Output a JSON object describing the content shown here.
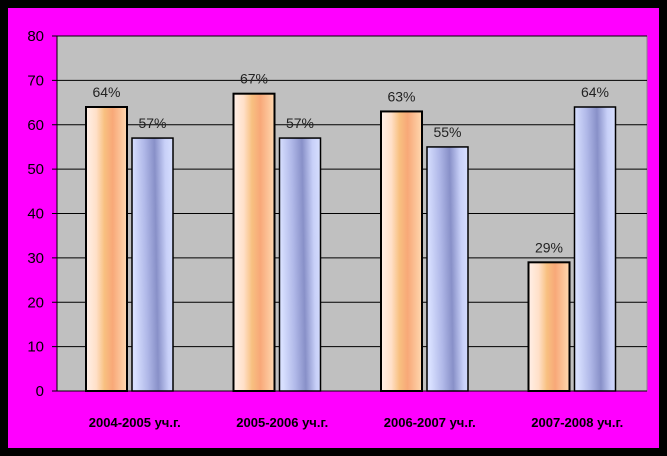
{
  "chart_data": {
    "type": "bar",
    "categories": [
      "2004-2005 уч.г.",
      "2005-2006 уч.г.",
      "2006-2007 уч.г.",
      "2007-2008 уч.г."
    ],
    "series": [
      {
        "values": [
          64,
          67,
          63,
          29
        ],
        "labels": [
          "64%",
          "67%",
          "63%",
          "29%"
        ],
        "color": "#f8b080"
      },
      {
        "values": [
          57,
          57,
          55,
          64
        ],
        "labels": [
          "57%",
          "57%",
          "55%",
          "64%"
        ],
        "color": "#9aa0d8"
      }
    ],
    "ylim": [
      0,
      80
    ],
    "yticks": [
      0,
      10,
      20,
      30,
      40,
      50,
      60,
      70,
      80
    ],
    "grid": true,
    "legend": "none",
    "colors": {
      "background": "#ff00ff",
      "plot_area": "#c0c0c0",
      "border": "#000000"
    }
  }
}
